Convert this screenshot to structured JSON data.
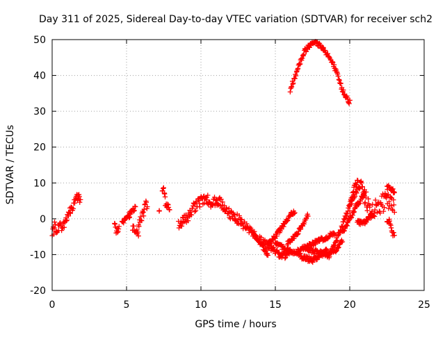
{
  "colors": {
    "series": "#ff0000",
    "frame": "#000000",
    "grid": "#a0a0a0",
    "background": "#ffffff"
  },
  "chart_data": {
    "type": "scatter",
    "title": "Day 311 of 2025, Sidereal Day-to-day VTEC variation (SDTVAR) for receiver sch2",
    "xlabel": "GPS time / hours",
    "ylabel": "SDTVAR / TECUs",
    "xlim": [
      0,
      25
    ],
    "ylim": [
      -20,
      50
    ],
    "xticks": [
      0,
      5,
      10,
      15,
      20,
      25
    ],
    "yticks": [
      -20,
      -10,
      0,
      10,
      20,
      30,
      40,
      50
    ],
    "grid": true,
    "marker": "+",
    "series": [
      {
        "name": "SDTVAR",
        "segments": [
          {
            "x0": 0.0,
            "x1": 0.35,
            "pts": [
              [
                0.0,
                -5.0
              ],
              [
                0.1,
                -3.0
              ],
              [
                0.2,
                -1.0
              ],
              [
                0.3,
                -5.0
              ],
              [
                0.35,
                -4.0
              ]
            ],
            "jitter": 1.5
          },
          {
            "x0": 0.4,
            "x1": 1.1,
            "pts": [
              [
                0.4,
                -2.0
              ],
              [
                0.7,
                -2.5
              ],
              [
                0.9,
                -1.0
              ],
              [
                1.1,
                1.0
              ]
            ],
            "jitter": 1.2
          },
          {
            "x0": 1.1,
            "x1": 1.9,
            "pts": [
              [
                1.1,
                1.0
              ],
              [
                1.3,
                3.0
              ],
              [
                1.5,
                4.5
              ],
              [
                1.7,
                6.0
              ],
              [
                1.9,
                5.0
              ]
            ],
            "jitter": 1.5
          },
          {
            "x0": 4.2,
            "x1": 4.5,
            "pts": [
              [
                4.2,
                -2.0
              ],
              [
                4.35,
                -3.5
              ],
              [
                4.5,
                -2.0
              ]
            ],
            "jitter": 1.0
          },
          {
            "x0": 4.7,
            "x1": 5.2,
            "pts": [
              [
                4.7,
                -1.0
              ],
              [
                5.0,
                0.0
              ],
              [
                5.2,
                1.0
              ]
            ],
            "jitter": 0.6
          },
          {
            "x0": 5.2,
            "x1": 5.6,
            "pts": [
              [
                5.2,
                1.5
              ],
              [
                5.4,
                2.5
              ],
              [
                5.6,
                3.0
              ]
            ],
            "jitter": 0.6
          },
          {
            "x0": 5.4,
            "x1": 5.8,
            "pts": [
              [
                5.4,
                -2.5
              ],
              [
                5.6,
                -3.0
              ],
              [
                5.8,
                -5.0
              ]
            ],
            "jitter": 1.0
          },
          {
            "x0": 5.8,
            "x1": 6.4,
            "pts": [
              [
                5.8,
                -2.0
              ],
              [
                6.0,
                0.0
              ],
              [
                6.2,
                3.0
              ],
              [
                6.4,
                4.0
              ]
            ],
            "jitter": 1.5
          },
          {
            "x0": 7.2,
            "x1": 7.2,
            "pts": [
              [
                7.2,
                2.0
              ]
            ],
            "jitter": 0.3
          },
          {
            "x0": 7.4,
            "x1": 7.6,
            "pts": [
              [
                7.4,
                7.5
              ],
              [
                7.5,
                8.0
              ],
              [
                7.6,
                6.5
              ]
            ],
            "jitter": 0.8
          },
          {
            "x0": 7.6,
            "x1": 7.9,
            "pts": [
              [
                7.6,
                4.0
              ],
              [
                7.8,
                3.5
              ],
              [
                7.9,
                3.0
              ]
            ],
            "jitter": 0.6
          },
          {
            "x0": 8.5,
            "x1": 13.0,
            "pts": [
              [
                8.5,
                -1.5
              ],
              [
                9.0,
                0.0
              ],
              [
                9.5,
                3.0
              ],
              [
                10.0,
                5.0
              ],
              [
                10.3,
                6.0
              ],
              [
                10.7,
                4.0
              ],
              [
                11.0,
                5.0
              ],
              [
                11.3,
                4.5
              ],
              [
                11.6,
                3.0
              ],
              [
                12.0,
                1.0
              ],
              [
                12.5,
                0.0
              ],
              [
                13.0,
                -2.0
              ]
            ],
            "jitter": 1.4
          },
          {
            "x0": 13.0,
            "x1": 16.0,
            "pts": [
              [
                13.0,
                -2.0
              ],
              [
                13.5,
                -4.0
              ],
              [
                14.0,
                -6.0
              ],
              [
                14.5,
                -7.5
              ],
              [
                15.0,
                -9.0
              ],
              [
                15.5,
                -10.5
              ],
              [
                16.0,
                -9.0
              ]
            ],
            "jitter": 1.0
          },
          {
            "x0": 13.5,
            "x1": 14.5,
            "pts": [
              [
                13.5,
                -4.0
              ],
              [
                14.0,
                -7.0
              ],
              [
                14.5,
                -10.0
              ]
            ],
            "jitter": 0.6
          },
          {
            "x0": 14.5,
            "x1": 16.3,
            "pts": [
              [
                14.5,
                -7.0
              ],
              [
                15.0,
                -5.0
              ],
              [
                15.5,
                -2.0
              ],
              [
                16.0,
                1.0
              ],
              [
                16.3,
                2.0
              ]
            ],
            "jitter": 0.6
          },
          {
            "x0": 15.0,
            "x1": 16.5,
            "pts": [
              [
                15.0,
                -7.0
              ],
              [
                15.5,
                -8.0
              ],
              [
                16.0,
                -9.0
              ],
              [
                16.5,
                -10.0
              ]
            ],
            "jitter": 0.6
          },
          {
            "x0": 15.8,
            "x1": 17.2,
            "pts": [
              [
                15.8,
                -7.0
              ],
              [
                16.3,
                -5.0
              ],
              [
                16.8,
                -2.0
              ],
              [
                17.2,
                1.0
              ]
            ],
            "jitter": 0.6
          },
          {
            "x0": 16.5,
            "x1": 18.5,
            "pts": [
              [
                16.5,
                -10.0
              ],
              [
                17.0,
                -11.0
              ],
              [
                17.5,
                -11.5
              ],
              [
                18.0,
                -10.0
              ],
              [
                18.5,
                -9.0
              ]
            ],
            "jitter": 0.8
          },
          {
            "x0": 16.5,
            "x1": 19.0,
            "pts": [
              [
                16.5,
                -9.0
              ],
              [
                17.0,
                -8.0
              ],
              [
                17.5,
                -7.0
              ],
              [
                18.0,
                -6.0
              ],
              [
                18.5,
                -5.0
              ],
              [
                19.0,
                -4.0
              ]
            ],
            "jitter": 0.6
          },
          {
            "x0": 17.0,
            "x1": 19.5,
            "pts": [
              [
                17.0,
                -8.0
              ],
              [
                17.5,
                -9.0
              ],
              [
                18.0,
                -9.5
              ],
              [
                18.5,
                -10.0
              ],
              [
                19.0,
                -9.0
              ],
              [
                19.5,
                -6.0
              ]
            ],
            "jitter": 0.6
          },
          {
            "x0": 18.5,
            "x1": 20.5,
            "pts": [
              [
                18.5,
                -11.0
              ],
              [
                19.0,
                -7.0
              ],
              [
                19.5,
                -2.0
              ],
              [
                20.0,
                4.0
              ],
              [
                20.5,
                8.0
              ]
            ],
            "jitter": 0.8
          },
          {
            "x0": 19.5,
            "x1": 21.0,
            "pts": [
              [
                19.5,
                -4.0
              ],
              [
                20.0,
                0.0
              ],
              [
                20.5,
                4.0
              ],
              [
                21.0,
                7.0
              ]
            ],
            "jitter": 0.6
          },
          {
            "x0": 20.0,
            "x1": 21.0,
            "pts": [
              [
                20.0,
                3.0
              ],
              [
                20.3,
                8.0
              ],
              [
                20.6,
                10.0
              ],
              [
                21.0,
                8.0
              ]
            ],
            "jitter": 1.5
          },
          {
            "x0": 20.5,
            "x1": 21.5,
            "pts": [
              [
                20.5,
                -1.0
              ],
              [
                21.0,
                -1.0
              ],
              [
                21.5,
                1.0
              ]
            ],
            "jitter": 0.6
          },
          {
            "x0": 21.0,
            "x1": 23.0,
            "pts": [
              [
                21.0,
                6.0
              ],
              [
                21.5,
                2.0
              ],
              [
                22.0,
                4.0
              ],
              [
                22.5,
                5.0
              ],
              [
                23.0,
                3.0
              ]
            ],
            "jitter": 2.5
          },
          {
            "x0": 22.5,
            "x1": 23.0,
            "pts": [
              [
                22.5,
                9.0
              ],
              [
                22.7,
                9.0
              ],
              [
                23.0,
                7.0
              ]
            ],
            "jitter": 0.8
          },
          {
            "x0": 22.5,
            "x1": 23.0,
            "pts": [
              [
                22.5,
                0.0
              ],
              [
                22.7,
                -1.0
              ],
              [
                22.8,
                -3.0
              ],
              [
                23.0,
                -5.0
              ]
            ],
            "jitter": 0.8
          },
          {
            "x0": 16.0,
            "x1": 20.0,
            "pts": [
              [
                16.0,
                36.0
              ],
              [
                16.5,
                42.0
              ],
              [
                17.0,
                47.0
              ],
              [
                17.5,
                49.5
              ],
              [
                18.0,
                48.5
              ],
              [
                18.5,
                46.0
              ],
              [
                19.0,
                42.0
              ],
              [
                19.5,
                36.0
              ],
              [
                20.0,
                32.5
              ]
            ],
            "jitter": 0.7
          }
        ]
      }
    ]
  }
}
